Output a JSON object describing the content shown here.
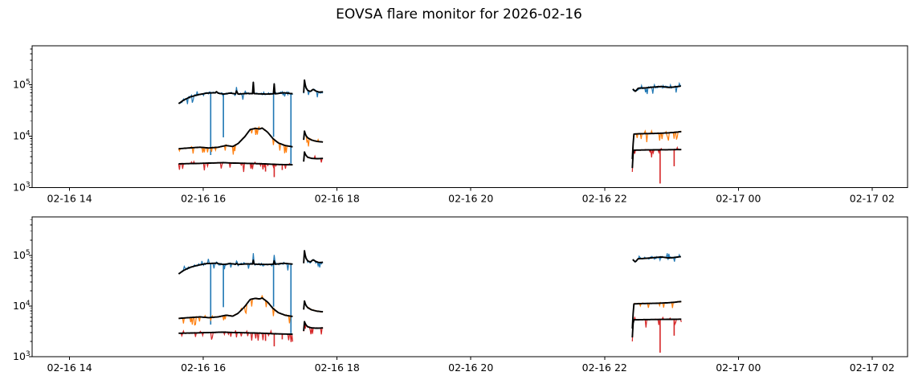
{
  "chart_data": {
    "type": "line",
    "title": "EOVSA flare monitor for 2026-02-16",
    "y_scale": "log",
    "ylim": [
      1000,
      575000
    ],
    "xlim_hours": [
      13.44,
      26.53
    ],
    "grid": false,
    "legend": "none",
    "x_ticks": [
      {
        "hour": 14,
        "label": "02-16 14"
      },
      {
        "hour": 16,
        "label": "02-16 16"
      },
      {
        "hour": 18,
        "label": "02-16 18"
      },
      {
        "hour": 20,
        "label": "02-16 20"
      },
      {
        "hour": 22,
        "label": "02-16 22"
      },
      {
        "hour": 24,
        "label": "02-17 00"
      },
      {
        "hour": 26,
        "label": "02-17 02"
      }
    ],
    "y_ticks": [
      {
        "value": 1000,
        "base": "10",
        "exp": "3"
      },
      {
        "value": 10000,
        "base": "10",
        "exp": "4"
      },
      {
        "value": 100000,
        "base": "10",
        "exp": "5"
      }
    ],
    "colors": {
      "high": "#1f77b4",
      "mid": "#ff7f0e",
      "low": "#d62728",
      "smooth": "#000000",
      "axis": "#000000"
    },
    "panels": [
      {
        "name": "panel-top",
        "seed": 7,
        "black_spike_scale": 1.0
      },
      {
        "name": "panel-bottom",
        "seed": 13,
        "black_spike_scale": 0.35
      }
    ],
    "series": [
      {
        "name": "high-band",
        "color_key": "high",
        "noise": {
          "sigma": 0.03,
          "dip_prob": 0.06,
          "dip_max": 0.1,
          "up_prob": 0.06,
          "up_max": 0.08
        },
        "segments": [
          {
            "anchors": [
              [
                15.63,
                43000
              ],
              [
                15.7,
                50000
              ],
              [
                15.8,
                58000
              ],
              [
                15.92,
                64000
              ],
              [
                16.05,
                69000
              ],
              [
                16.18,
                70000
              ],
              [
                16.3,
                66000
              ],
              [
                16.4,
                69000
              ],
              [
                16.52,
                66000
              ],
              [
                16.65,
                68000
              ],
              [
                16.8,
                67000
              ],
              [
                16.95,
                66000
              ],
              [
                17.08,
                67000
              ],
              [
                17.2,
                70000
              ],
              [
                17.34,
                67000
              ]
            ],
            "spikes": [
              {
                "x": 16.2,
                "v": 84000
              },
              {
                "x": 16.5,
                "v": 100000
              },
              {
                "x": 16.745,
                "v": 130000
              },
              {
                "x": 17.06,
                "v": 110000
              }
            ],
            "droplines": [
              {
                "x": 16.11,
                "v": 4300
              },
              {
                "x": 16.3,
                "v": 9500
              },
              {
                "x": 17.05,
                "v": 9700
              },
              {
                "x": 17.31,
                "v": 2900
              }
            ]
          },
          {
            "anchors": [
              [
                17.5,
                70000
              ],
              [
                17.51,
                128000
              ],
              [
                17.53,
                90000
              ],
              [
                17.56,
                78000
              ],
              [
                17.6,
                74000
              ],
              [
                17.64,
                82000
              ],
              [
                17.68,
                76000
              ],
              [
                17.73,
                72000
              ],
              [
                17.79,
                73000
              ]
            ],
            "spikes": [],
            "droplines": []
          },
          {
            "anchors": [
              [
                22.42,
                83000
              ],
              [
                22.46,
                74000
              ],
              [
                22.5,
                86000
              ],
              [
                22.6,
                87000
              ],
              [
                22.72,
                90000
              ],
              [
                22.85,
                93000
              ],
              [
                22.95,
                89000
              ],
              [
                23.05,
                91000
              ],
              [
                23.15,
                95000
              ]
            ],
            "spikes": [
              {
                "x": 23.12,
                "v": 112000,
                "blue_only": true
              }
            ],
            "droplines": []
          }
        ]
      },
      {
        "name": "mid-band",
        "color_key": "mid",
        "noise": {
          "sigma": 0.013,
          "dip_prob": 0.1,
          "dip_max": 0.14,
          "up_prob": 0.03,
          "up_max": 0.04
        },
        "segments": [
          {
            "anchors": [
              [
                15.63,
                5700
              ],
              [
                15.78,
                5900
              ],
              [
                15.95,
                6100
              ],
              [
                16.08,
                5900
              ],
              [
                16.22,
                6100
              ],
              [
                16.34,
                6600
              ],
              [
                16.44,
                6300
              ],
              [
                16.52,
                7200
              ],
              [
                16.62,
                9800
              ],
              [
                16.7,
                13500
              ],
              [
                16.78,
                14200
              ],
              [
                16.84,
                13800
              ],
              [
                16.88,
                14400
              ],
              [
                16.96,
                12000
              ],
              [
                17.04,
                9000
              ],
              [
                17.12,
                7400
              ],
              [
                17.22,
                6600
              ],
              [
                17.34,
                6200
              ]
            ],
            "spikes": [],
            "droplines": []
          },
          {
            "anchors": [
              [
                17.5,
                8500
              ],
              [
                17.505,
                13500
              ],
              [
                17.53,
                10500
              ],
              [
                17.56,
                9300
              ],
              [
                17.62,
                8400
              ],
              [
                17.7,
                7900
              ],
              [
                17.79,
                7700
              ]
            ],
            "spikes": [],
            "droplines": []
          },
          {
            "anchors": [
              [
                22.415,
                3600
              ],
              [
                22.435,
                11000
              ],
              [
                22.55,
                11200
              ],
              [
                22.75,
                11300
              ],
              [
                22.95,
                11600
              ],
              [
                23.05,
                11900
              ],
              [
                23.15,
                12300
              ]
            ],
            "spikes": [],
            "droplines": []
          }
        ]
      },
      {
        "name": "low-band",
        "color_key": "low",
        "noise": {
          "sigma": 0.01,
          "dip_prob": 0.12,
          "dip_max": 0.13,
          "up_prob": 0.02,
          "up_max": 0.03
        },
        "segments": [
          {
            "anchors": [
              [
                15.63,
                2900
              ],
              [
                15.9,
                2950
              ],
              [
                16.1,
                3000
              ],
              [
                16.3,
                3050
              ],
              [
                16.45,
                3000
              ],
              [
                16.7,
                2950
              ],
              [
                16.9,
                2900
              ],
              [
                17.1,
                2820
              ],
              [
                17.34,
                2780
              ]
            ],
            "spikes": [],
            "droplines": [
              {
                "x": 16.93,
                "v": 2050
              },
              {
                "x": 17.06,
                "v": 1600
              },
              {
                "x": 17.18,
                "v": 2200
              }
            ]
          },
          {
            "anchors": [
              [
                17.5,
                3200
              ],
              [
                17.505,
                5200
              ],
              [
                17.53,
                4300
              ],
              [
                17.56,
                3900
              ],
              [
                17.62,
                3700
              ],
              [
                17.7,
                3650
              ],
              [
                17.79,
                3700
              ]
            ],
            "spikes": [],
            "droplines": []
          },
          {
            "anchors": [
              [
                22.415,
                2400
              ],
              [
                22.43,
                5350
              ],
              [
                22.6,
                5400
              ],
              [
                22.9,
                5450
              ],
              [
                23.15,
                5500
              ]
            ],
            "spikes": [],
            "droplines": [
              {
                "x": 22.83,
                "v": 1200
              },
              {
                "x": 23.04,
                "v": 2600
              }
            ]
          }
        ]
      }
    ]
  }
}
